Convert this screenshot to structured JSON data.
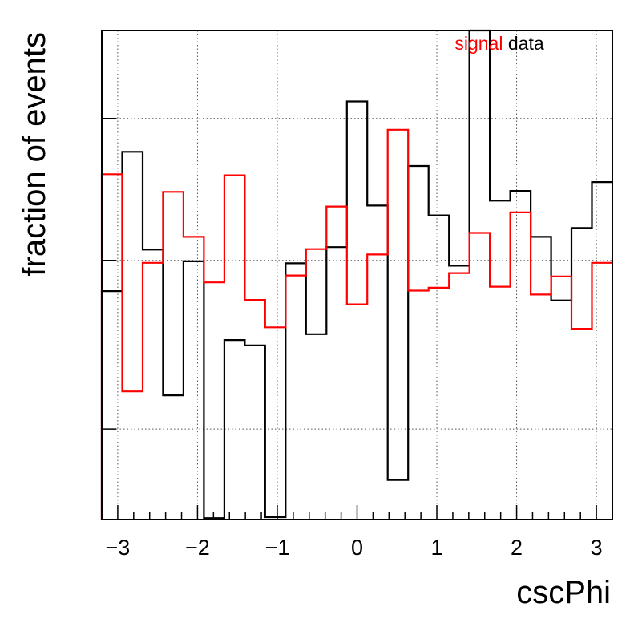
{
  "chart_data": {
    "type": "line",
    "style": "step-histogram",
    "xlabel": "cscPhi",
    "ylabel": "fraction of events",
    "xlim": [
      -3.2,
      3.2
    ],
    "ylim": [
      0,
      1
    ],
    "y_tick_labels_shown": false,
    "xticks": [
      -3,
      -2,
      -1,
      0,
      1,
      2,
      3
    ],
    "xtick_labels": [
      "−3",
      "−2",
      "−1",
      "0",
      "1",
      "2",
      "3"
    ],
    "grid": true,
    "legend_position": "top",
    "bin_edges": [
      -3.2,
      -2.944,
      -2.688,
      -2.432,
      -2.176,
      -1.92,
      -1.664,
      -1.408,
      -1.152,
      -0.896,
      -0.64,
      -0.384,
      -0.128,
      0.128,
      0.384,
      0.64,
      0.896,
      1.152,
      1.408,
      1.664,
      1.92,
      2.176,
      2.432,
      2.688,
      2.944,
      3.2
    ],
    "series": [
      {
        "name": "data",
        "color": "#000000",
        "values": [
          0.467,
          0.752,
          0.552,
          0.254,
          0.528,
          0.003,
          0.367,
          0.356,
          0.005,
          0.524,
          0.379,
          0.557,
          0.855,
          0.642,
          0.081,
          0.723,
          0.622,
          0.519,
          1.0,
          0.652,
          0.672,
          0.578,
          0.448,
          0.596,
          0.69
        ]
      },
      {
        "name": "signal",
        "color": "#ff0000",
        "values": [
          0.706,
          0.262,
          0.525,
          0.67,
          0.578,
          0.485,
          0.704,
          0.449,
          0.393,
          0.499,
          0.553,
          0.64,
          0.44,
          0.542,
          0.797,
          0.468,
          0.474,
          0.504,
          0.586,
          0.476,
          0.628,
          0.46,
          0.497,
          0.39,
          0.525
        ]
      }
    ]
  }
}
